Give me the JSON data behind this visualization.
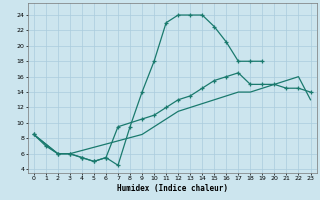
{
  "xlabel": "Humidex (Indice chaleur)",
  "bg_color": "#cce5ee",
  "grid_color": "#aaccdd",
  "line_color": "#1a7a6e",
  "xlim": [
    -0.5,
    23.5
  ],
  "ylim": [
    3.5,
    25.5
  ],
  "xticks": [
    0,
    1,
    2,
    3,
    4,
    5,
    6,
    7,
    8,
    9,
    10,
    11,
    12,
    13,
    14,
    15,
    16,
    17,
    18,
    19,
    20,
    21,
    22,
    23
  ],
  "yticks": [
    4,
    6,
    8,
    10,
    12,
    14,
    16,
    18,
    20,
    22,
    24
  ],
  "line1_x": [
    0,
    1,
    2,
    3,
    4,
    5,
    6,
    7,
    8,
    9,
    10,
    11,
    12,
    13,
    14,
    15,
    16,
    17,
    18,
    19
  ],
  "line1_y": [
    8.5,
    7.0,
    6.0,
    6.0,
    5.5,
    5.0,
    5.5,
    4.5,
    9.5,
    14.0,
    18.0,
    23.0,
    24.0,
    24.0,
    24.0,
    22.5,
    20.5,
    18.0,
    18.0,
    18.0
  ],
  "line2_x": [
    0,
    2,
    3,
    4,
    5,
    6,
    7,
    9,
    10,
    11,
    12,
    13,
    14,
    15,
    16,
    17,
    18,
    19,
    20,
    21,
    22,
    23
  ],
  "line2_y": [
    8.5,
    6.0,
    6.0,
    5.5,
    5.0,
    5.5,
    9.5,
    10.5,
    11.0,
    12.0,
    13.0,
    13.5,
    14.5,
    15.5,
    16.0,
    16.5,
    15.0,
    15.0,
    15.0,
    14.5,
    14.5,
    14.0
  ],
  "line3_x": [
    0,
    2,
    3,
    9,
    10,
    11,
    12,
    13,
    14,
    15,
    16,
    17,
    18,
    19,
    20,
    21,
    22,
    23
  ],
  "line3_y": [
    8.5,
    6.0,
    6.0,
    8.5,
    9.5,
    10.5,
    11.5,
    12.0,
    12.5,
    13.0,
    13.5,
    14.0,
    14.0,
    14.5,
    15.0,
    15.5,
    16.0,
    13.0
  ]
}
